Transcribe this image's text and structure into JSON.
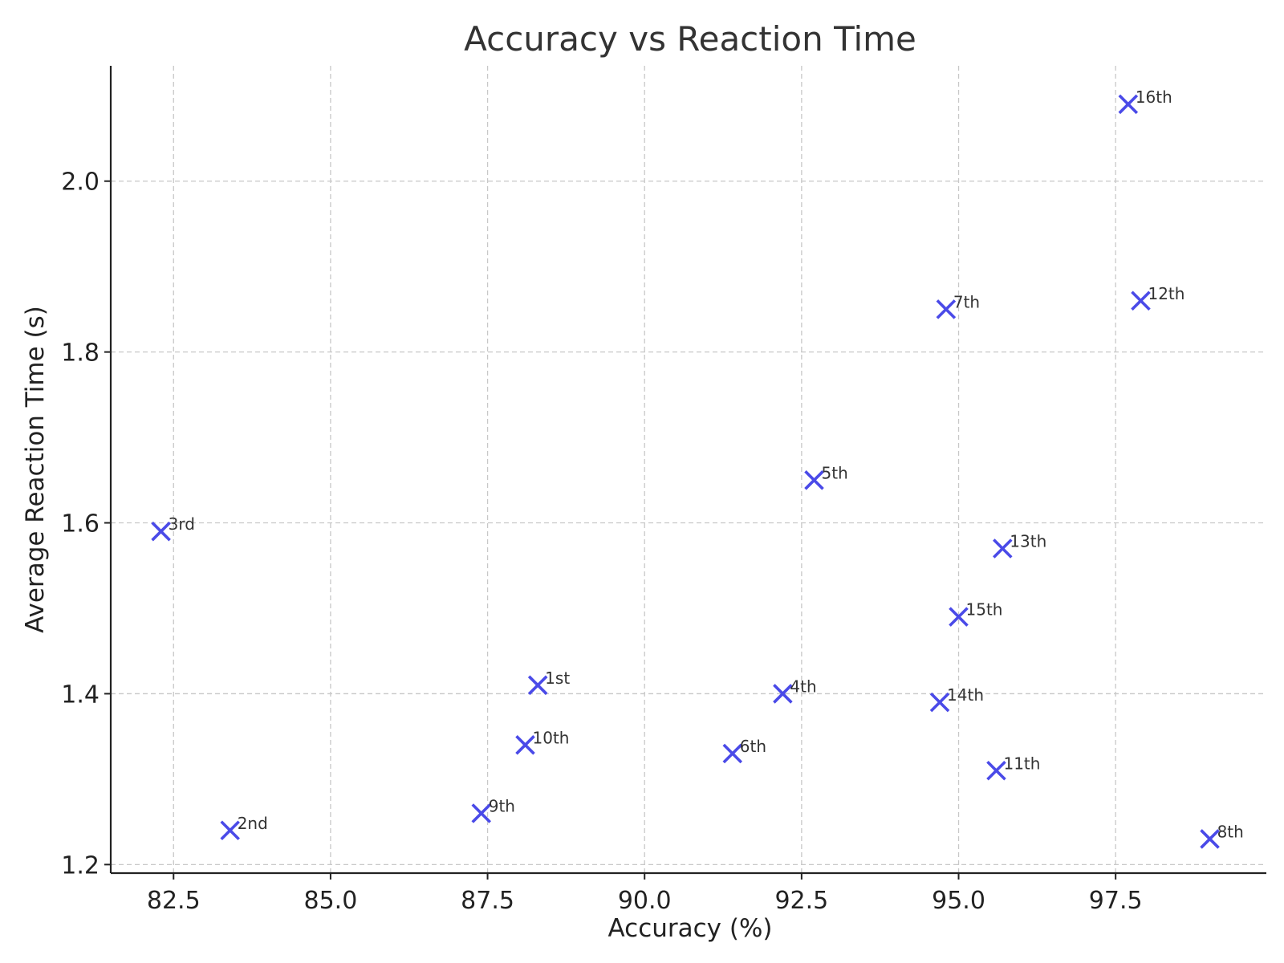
{
  "chart_data": {
    "type": "scatter",
    "title": "Accuracy vs Reaction Time",
    "xlabel": "Accuracy (%)",
    "ylabel": "Average Reaction Time (s)",
    "xlim": [
      81.5,
      99.9
    ],
    "ylim": [
      1.19,
      2.135
    ],
    "x_ticks": [
      82.5,
      85.0,
      87.5,
      90.0,
      92.5,
      95.0,
      97.5
    ],
    "x_tick_labels": [
      "82.5",
      "85.0",
      "87.5",
      "90.0",
      "92.5",
      "95.0",
      "97.5"
    ],
    "y_ticks": [
      1.2,
      1.4,
      1.6,
      1.8,
      2.0
    ],
    "y_tick_labels": [
      "1.2",
      "1.4",
      "1.6",
      "1.8",
      "2.0"
    ],
    "grid": true,
    "marker": "x",
    "marker_color": "#4a4ae8",
    "points": [
      {
        "label": "1st",
        "x": 88.3,
        "y": 1.41
      },
      {
        "label": "2nd",
        "x": 83.4,
        "y": 1.24
      },
      {
        "label": "3rd",
        "x": 82.3,
        "y": 1.59
      },
      {
        "label": "4th",
        "x": 92.2,
        "y": 1.4
      },
      {
        "label": "5th",
        "x": 92.7,
        "y": 1.65
      },
      {
        "label": "6th",
        "x": 91.4,
        "y": 1.33
      },
      {
        "label": "7th",
        "x": 94.8,
        "y": 1.85
      },
      {
        "label": "8th",
        "x": 99.0,
        "y": 1.23
      },
      {
        "label": "9th",
        "x": 87.4,
        "y": 1.26
      },
      {
        "label": "10th",
        "x": 88.1,
        "y": 1.34
      },
      {
        "label": "11th",
        "x": 95.6,
        "y": 1.31
      },
      {
        "label": "12th",
        "x": 97.9,
        "y": 1.86
      },
      {
        "label": "13th",
        "x": 95.7,
        "y": 1.57
      },
      {
        "label": "14th",
        "x": 94.7,
        "y": 1.39
      },
      {
        "label": "15th",
        "x": 95.0,
        "y": 1.49
      },
      {
        "label": "16th",
        "x": 97.7,
        "y": 2.09
      }
    ]
  }
}
